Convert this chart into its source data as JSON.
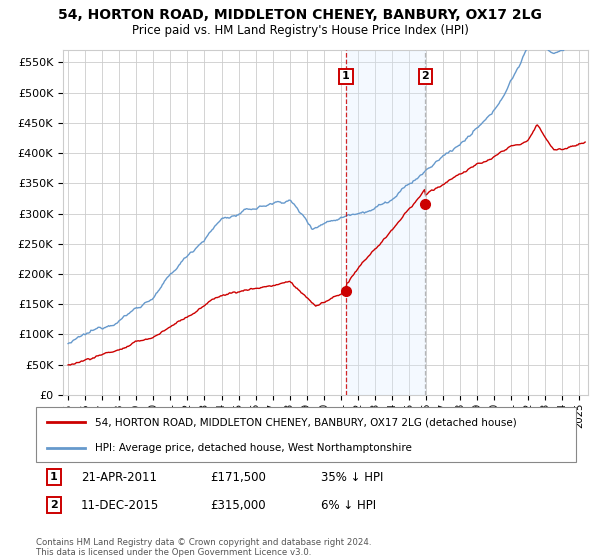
{
  "title": "54, HORTON ROAD, MIDDLETON CHENEY, BANBURY, OX17 2LG",
  "subtitle": "Price paid vs. HM Land Registry's House Price Index (HPI)",
  "sale1_date": "21-APR-2011",
  "sale1_price": 171500,
  "sale1_label": "35% ↓ HPI",
  "sale1_year": 2011.3,
  "sale2_date": "11-DEC-2015",
  "sale2_price": 315000,
  "sale2_label": "6% ↓ HPI",
  "sale2_year": 2015.95,
  "hpi_line_color": "#6699cc",
  "price_line_color": "#cc0000",
  "sale_dot_color": "#cc0000",
  "shaded_region_color": "#ddeeff",
  "vline1_color": "#cc0000",
  "vline2_color": "#aaaaaa",
  "legend_label1": "54, HORTON ROAD, MIDDLETON CHENEY, BANBURY, OX17 2LG (detached house)",
  "legend_label2": "HPI: Average price, detached house, West Northamptonshire",
  "footnote": "Contains HM Land Registry data © Crown copyright and database right 2024.\nThis data is licensed under the Open Government Licence v3.0.",
  "ylim": [
    0,
    570000
  ],
  "xlim_start": 1994.7,
  "xlim_end": 2025.5,
  "grid_color": "#cccccc",
  "background_color": "#ffffff",
  "box1_label": "1",
  "box2_label": "2",
  "title_fontsize": 10,
  "subtitle_fontsize": 8.5
}
